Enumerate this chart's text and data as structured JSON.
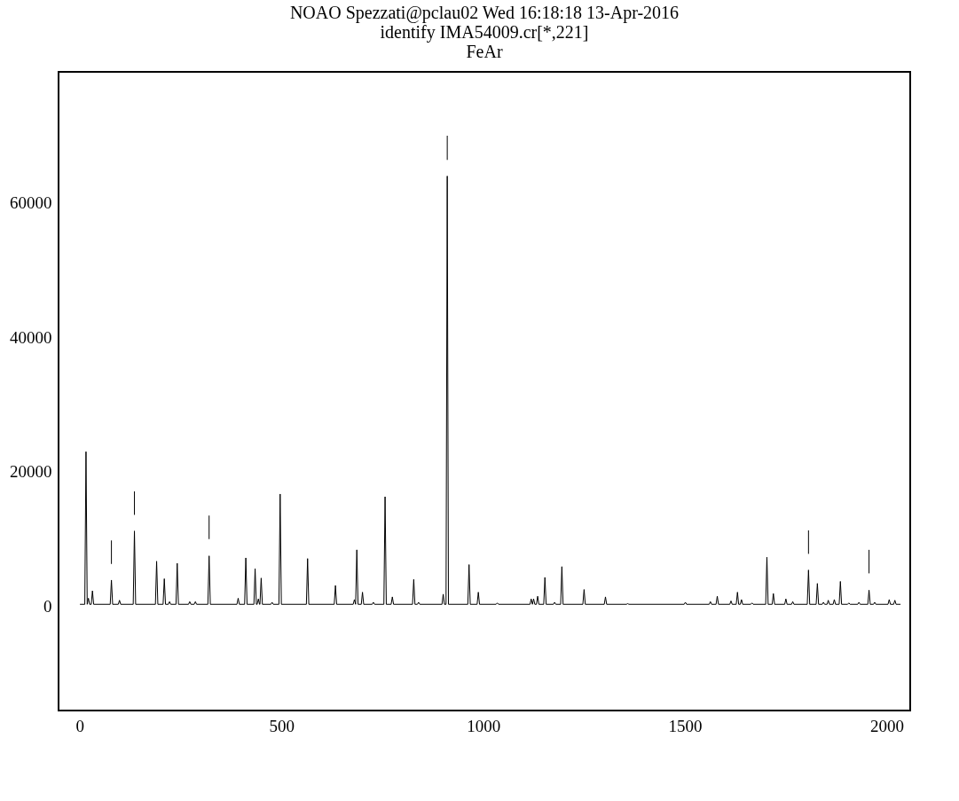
{
  "chart_data": {
    "type": "line",
    "title": "NOAO Spezzati@pclau02 Wed 16:18:18 13-Apr-2016",
    "subtitle": "identify IMA54009.cr[*,221]\nFeAr",
    "xlim": [
      -52,
      2058
    ],
    "ylim": [
      -15500,
      79500
    ],
    "xticks": [
      0,
      500,
      1000,
      1500,
      2000
    ],
    "yticks": [
      0,
      20000,
      40000,
      60000
    ],
    "grid": false,
    "line_style": "solid",
    "series": [
      {
        "color": "#000000",
        "x": [
          1,
          13,
          16,
          19,
          22,
          25,
          29,
          32,
          35,
          76,
          79,
          82,
          96,
          99,
          102,
          133,
          136,
          139,
          188,
          191,
          194,
          207,
          210,
          213,
          220,
          223,
          226,
          239,
          242,
          245,
          270,
          273,
          276,
          284,
          287,
          290,
          318,
          321,
          324,
          390,
          393,
          396,
          409,
          412,
          415,
          432,
          435,
          438,
          440,
          443,
          446,
          447,
          450,
          453,
          474,
          477,
          480,
          494,
          497,
          500,
          562,
          565,
          568,
          631,
          634,
          637,
          678,
          681,
          684,
          687,
          690,
          698,
          701,
          704,
          725,
          728,
          731,
          754,
          757,
          760,
          772,
          775,
          778,
          825,
          828,
          831,
          837,
          840,
          843,
          898,
          901,
          904,
          908,
          911,
          914,
          962,
          965,
          968,
          985,
          988,
          991,
          1032,
          1035,
          1038,
          1116,
          1119,
          1122,
          1125,
          1128,
          1132,
          1135,
          1138,
          1150,
          1153,
          1156,
          1174,
          1177,
          1180,
          1192,
          1195,
          1198,
          1247,
          1250,
          1253,
          1300,
          1303,
          1306,
          1355,
          1358,
          1361,
          1498,
          1501,
          1504,
          1560,
          1563,
          1566,
          1577,
          1580,
          1583,
          1611,
          1614,
          1617,
          1627,
          1630,
          1633,
          1637,
          1640,
          1643,
          1663,
          1666,
          1669,
          1700,
          1703,
          1706,
          1716,
          1719,
          1722,
          1747,
          1750,
          1753,
          1764,
          1767,
          1770,
          1803,
          1806,
          1809,
          1825,
          1828,
          1831,
          1840,
          1843,
          1846,
          1852,
          1855,
          1858,
          1867,
          1870,
          1873,
          1882,
          1885,
          1888,
          1903,
          1906,
          1909,
          1928,
          1931,
          1934,
          1953,
          1956,
          1959,
          1967,
          1970,
          1973,
          2003,
          2006,
          2009,
          2017,
          2020,
          2023,
          2034
        ],
        "values": [
          300,
          300,
          23000,
          300,
          1200,
          300,
          300,
          2300,
          300,
          300,
          3900,
          300,
          300,
          900,
          300,
          300,
          11200,
          300,
          300,
          6700,
          300,
          300,
          4100,
          300,
          300,
          700,
          300,
          300,
          6400,
          300,
          300,
          700,
          300,
          300,
          700,
          300,
          300,
          7500,
          300,
          300,
          1200,
          300,
          300,
          7200,
          300,
          300,
          5600,
          300,
          300,
          1100,
          300,
          300,
          4200,
          300,
          300,
          600,
          300,
          300,
          16700,
          300,
          300,
          7100,
          300,
          300,
          3100,
          300,
          300,
          1000,
          300,
          8400,
          300,
          300,
          2100,
          300,
          300,
          600,
          300,
          300,
          16300,
          300,
          300,
          1400,
          300,
          300,
          4000,
          300,
          300,
          600,
          300,
          300,
          1800,
          300,
          300,
          64000,
          300,
          300,
          6200,
          300,
          300,
          2100,
          300,
          300,
          500,
          300,
          300,
          1100,
          300,
          1100,
          300,
          300,
          1500,
          300,
          300,
          4300,
          300,
          300,
          600,
          300,
          300,
          5900,
          300,
          300,
          2500,
          300,
          300,
          1400,
          300,
          300,
          400,
          300,
          300,
          600,
          300,
          300,
          700,
          300,
          300,
          1500,
          300,
          300,
          800,
          300,
          300,
          2100,
          300,
          300,
          1000,
          300,
          300,
          500,
          300,
          300,
          7300,
          300,
          300,
          1900,
          300,
          300,
          1100,
          300,
          300,
          700,
          300,
          300,
          5400,
          300,
          300,
          3400,
          300,
          300,
          600,
          300,
          300,
          900,
          300,
          300,
          1000,
          300,
          300,
          3700,
          300,
          300,
          500,
          300,
          300,
          600,
          300,
          300,
          2400,
          300,
          300,
          600,
          300,
          300,
          1000,
          300,
          300,
          900,
          300,
          300
        ]
      },
      {
        "color": "#000000",
        "x": [
          79,
          79
        ],
        "values": [
          6300,
          9800
        ]
      },
      {
        "color": "#000000",
        "x": [
          136,
          136
        ],
        "values": [
          13600,
          17100
        ]
      },
      {
        "color": "#000000",
        "x": [
          321,
          321
        ],
        "values": [
          10000,
          13500
        ]
      },
      {
        "color": "#000000",
        "x": [
          911,
          911
        ],
        "values": [
          66400,
          70000
        ]
      },
      {
        "color": "#000000",
        "x": [
          1806,
          1806
        ],
        "values": [
          7800,
          11300
        ]
      },
      {
        "color": "#000000",
        "x": [
          1956,
          1956
        ],
        "values": [
          4900,
          8400
        ]
      }
    ]
  }
}
